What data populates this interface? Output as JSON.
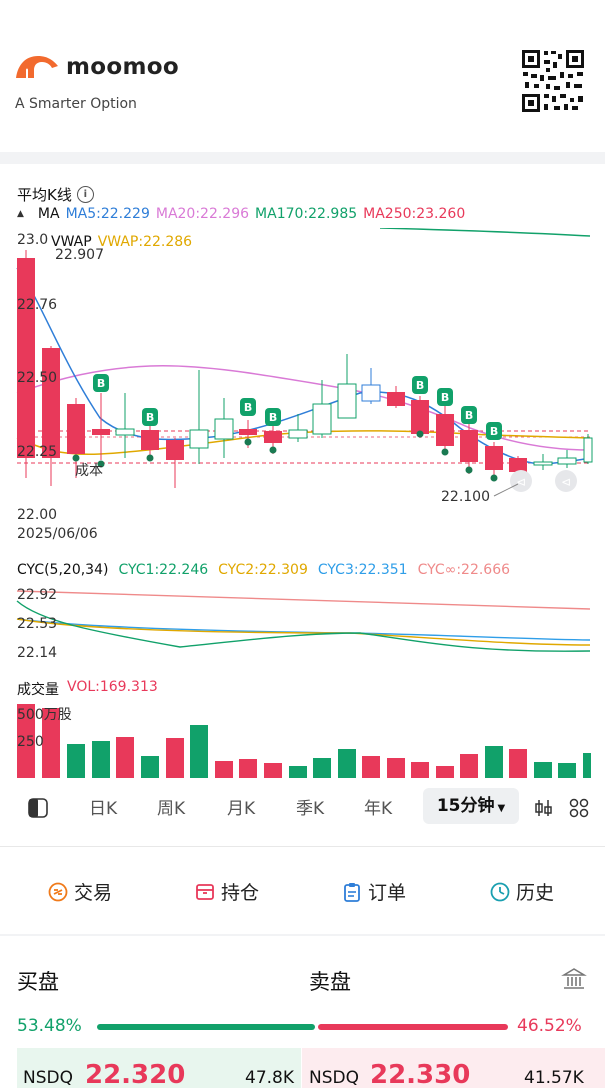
{
  "header": {
    "brand": "moomoo",
    "tagline": "A Smarter Option"
  },
  "chart": {
    "title": "平均K线",
    "ma_label": "MA",
    "ma5": "MA5:22.229",
    "ma20": "MA20:22.296",
    "ma170": "MA170:22.985",
    "ma250": "MA250:23.260",
    "vwap_label": "VWAP",
    "vwap_value": "VWAP:22.286",
    "y_ticks": [
      "23.0",
      "22.76",
      "22.50",
      "22.25",
      "22.00"
    ],
    "high_label": "22.907",
    "low_label": "22.100",
    "cost_label": "成本",
    "date": "2025/06/06",
    "buy_marker": "B",
    "colors": {
      "up": "#11a16a",
      "down": "#e8395a",
      "ma5": "#2f7ed8",
      "ma20": "#d97ad6",
      "ma170": "#11a16a",
      "ma250": "#e8395a",
      "vwap": "#e0a800"
    }
  },
  "cyc": {
    "label": "CYC(5,20,34)",
    "cyc1": "CYC1:22.246",
    "cyc2": "CYC2:22.309",
    "cyc3": "CYC3:22.351",
    "cycinf": "CYC∞:22.666",
    "y_ticks": [
      "22.92",
      "22.53",
      "22.14"
    ]
  },
  "volume": {
    "label": "成交量",
    "vol": "VOL:169.313",
    "unit_label": "500万股",
    "mid_tick": "250"
  },
  "period_tabs": [
    "日K",
    "周K",
    "月K",
    "季K",
    "年K"
  ],
  "active_period": "15分钟",
  "actions": [
    "交易",
    "持仓",
    "订单",
    "历史"
  ],
  "order_book": {
    "bid_title": "买盘",
    "ask_title": "卖盘",
    "bid_pct": "53.48%",
    "ask_pct": "46.52%",
    "bid_exchange": "NSDQ",
    "bid_price": "22.320",
    "bid_size": "47.8K",
    "ask_exchange": "NSDQ",
    "ask_price": "22.330",
    "ask_size": "41.57K"
  }
}
